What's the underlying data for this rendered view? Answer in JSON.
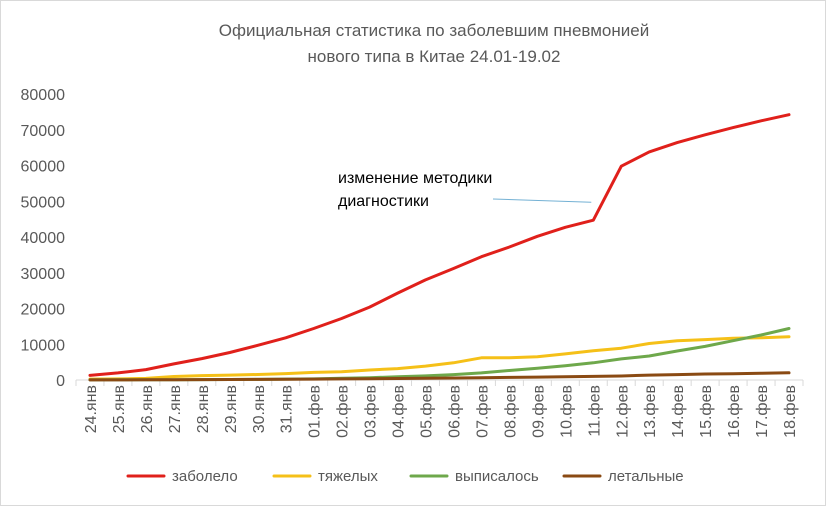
{
  "chart_data": {
    "type": "line",
    "title": [
      "Официальная статистика по заболевшим пневмонией",
      "нового типа в Китае 24.01-19.02"
    ],
    "xlabel": "",
    "ylabel": "",
    "ylim": [
      0,
      80000
    ],
    "yticks": [
      "0",
      "10000",
      "20000",
      "30000",
      "40000",
      "50000",
      "60000",
      "70000",
      "80000"
    ],
    "grid": false,
    "legend_position": "bottom",
    "categories": [
      "24.янв",
      "25.янв",
      "26.янв",
      "27.янв",
      "28.янв",
      "29.янв",
      "30.янв",
      "31.янв",
      "01.фев",
      "02.фев",
      "03.фев",
      "04.фев",
      "05.фев",
      "06.фев",
      "07.фев",
      "08.фев",
      "09.фев",
      "10.фев",
      "11.фев",
      "12.фев",
      "13.фев",
      "14.фев",
      "15.фев",
      "16.фев",
      "17.фев",
      "18.фев"
    ],
    "series": [
      {
        "name": "заболело",
        "color": "#e0201b",
        "values": [
          1300,
          2000,
          2900,
          4500,
          6000,
          7700,
          9700,
          11800,
          14400,
          17200,
          20400,
          24300,
          28000,
          31200,
          34500,
          37200,
          40200,
          42700,
          44700,
          59800,
          63800,
          66400,
          68600,
          70600,
          72500,
          74200
        ]
      },
      {
        "name": "тяжелых",
        "color": "#f5c018",
        "values": [
          240,
          320,
          460,
          980,
          1240,
          1370,
          1530,
          1800,
          2120,
          2300,
          2800,
          3200,
          3900,
          4800,
          6200,
          6200,
          6500,
          7300,
          8200,
          8900,
          10200,
          11000,
          11300,
          11700,
          11800,
          12100
        ]
      },
      {
        "name": "выписалось",
        "color": "#6ea84b",
        "values": [
          40,
          50,
          60,
          70,
          110,
          130,
          170,
          240,
          320,
          480,
          640,
          900,
          1150,
          1500,
          2000,
          2650,
          3300,
          3990,
          4800,
          5900,
          6700,
          8100,
          9400,
          11000,
          12600,
          14400
        ]
      },
      {
        "name": "летальные",
        "color": "#8a4a13",
        "values": [
          26,
          41,
          56,
          80,
          106,
          132,
          170,
          213,
          259,
          304,
          361,
          425,
          490,
          563,
          637,
          722,
          811,
          908,
          1016,
          1113,
          1367,
          1523,
          1665,
          1770,
          1868,
          2004
        ]
      }
    ],
    "annotations": [
      {
        "text": [
          "изменение методики",
          "диагностики"
        ],
        "points_to": {
          "category": "11.фев",
          "value": 50000
        },
        "line_color": "#74b1d4"
      }
    ]
  }
}
